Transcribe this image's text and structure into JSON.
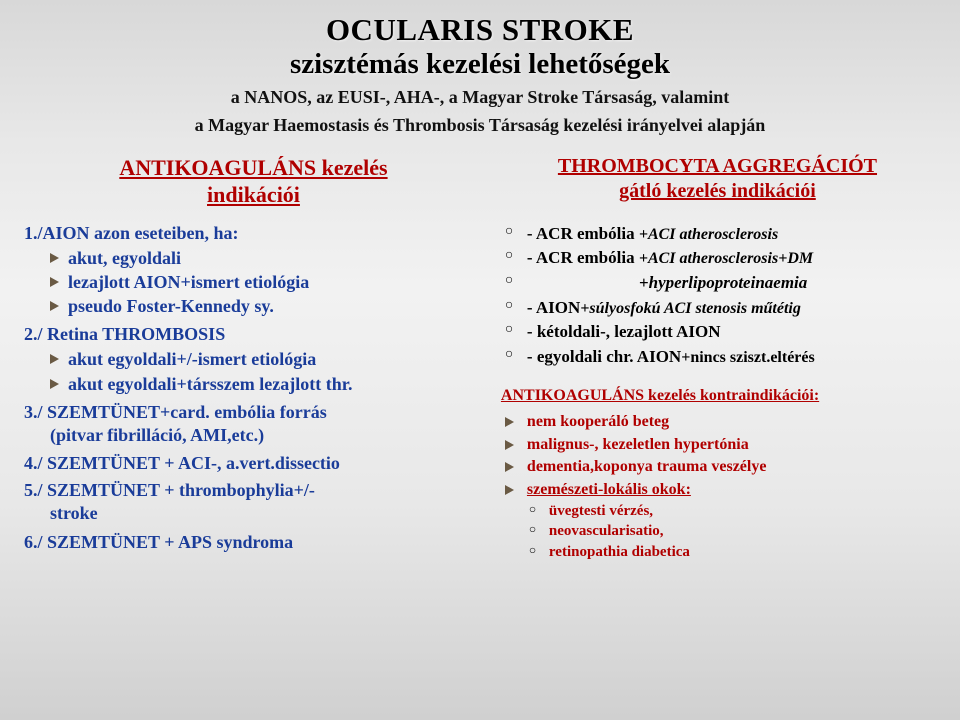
{
  "header": {
    "title1": "OCULARIS STROKE",
    "title2": "szisztémás kezelési lehetőségek",
    "subtitle1": "a NANOS, az EUSI-, AHA-, a Magyar Stroke Társaság, valamint",
    "subtitle2": "a Magyar Haemostasis és Thrombosis Társaság kezelési irányelvei alapján"
  },
  "left": {
    "heading1": "ANTIKOAGULÁNS kezelés",
    "heading2": "indikációi",
    "item1_label": "1./AION azon eseteiben, ha:",
    "item1_bullets": [
      "akut, egyoldali",
      "lezajlott AION+ismert etiológia",
      "pseudo Foster-Kennedy sy."
    ],
    "item2_label": "2./ Retina THROMBOSIS",
    "item2_bullets": [
      "akut egyoldali+/-ismert etiológia",
      "akut egyoldali+társszem lezajlott thr."
    ],
    "item3_label": "3./ SZEMTÜNET+card. embólia forrás",
    "item3_sub": "(pitvar fibrilláció, AMI,etc.)",
    "item4_label": "4./ SZEMTÜNET + ACI-, a.vert.dissectio",
    "item5_label1": "5./ SZEMTÜNET + thrombophylia+/-",
    "item5_label2": "stroke",
    "item6_label": "6./ SZEMTÜNET + APS syndroma"
  },
  "right": {
    "heading1": "THROMBOCYTA AGGREGÁCIÓT",
    "heading2": "gátló kezelés indikációi",
    "circ": {
      "l1_lead": "- ACR embólia ",
      "l1_tail": "+ACI atherosclerosis",
      "l2_lead": "- ACR embólia ",
      "l2_tail": "+ACI atherosclerosis+DM",
      "l3": "+hyperlipoproteinaemia",
      "l4_lead": "- AION",
      "l4_tail": "+súlyosfokú ACI stenosis műtétig",
      "l5": "- kétoldali-, lezajlott AION",
      "l6_lead": "- egyoldali chr. AION",
      "l6_tail": "+nincs sziszt.eltérés"
    },
    "contra_heading": "ANTIKOAGULÁNS kezelés kontraindikációi:",
    "contra": {
      "a": "nem kooperáló beteg",
      "b": "malignus-, kezeletlen hypertónia",
      "c": "dementia,koponya trauma veszélye",
      "d": "szemészeti-lokális okok:",
      "d1": "üvegtesti vérzés,",
      "d2": "neovascularisatio,",
      "d3": "retinopathia diabetica"
    }
  },
  "colors": {
    "blue": "#1a3c99",
    "red": "#b00000",
    "bullet": "#6a5a44",
    "bg_top": "#d8d8d8",
    "bg_bottom": "#d0d0d0"
  }
}
